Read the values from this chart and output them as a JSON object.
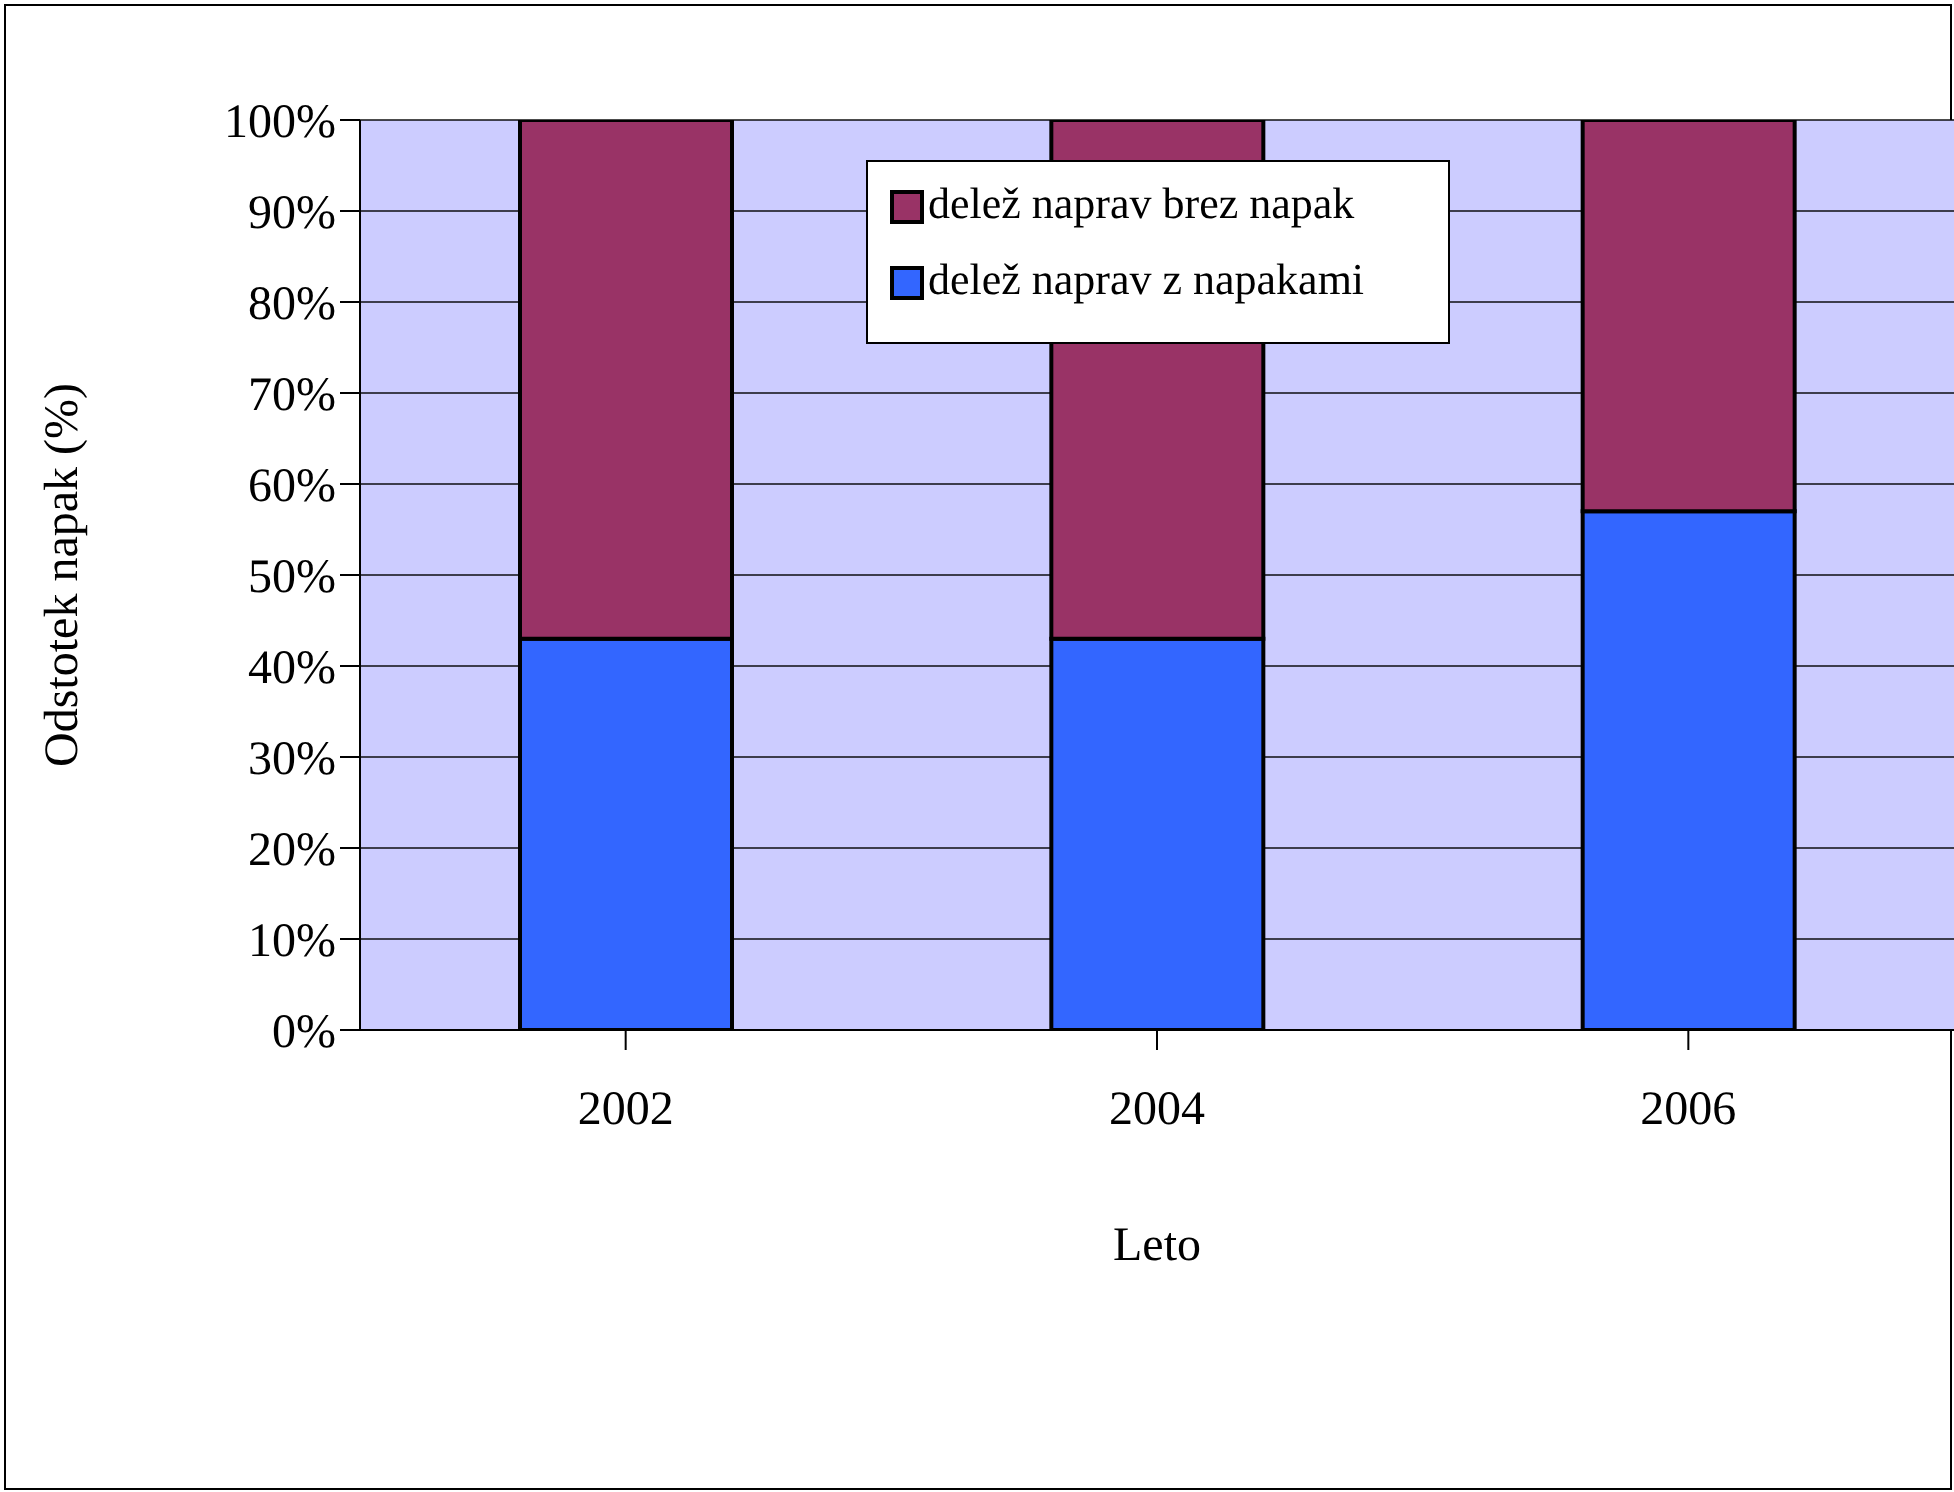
{
  "chart_data": {
    "type": "bar",
    "stacked": true,
    "xlabel": "Leto",
    "ylabel": "Odstotek napak (%)",
    "categories": [
      "2002",
      "2004",
      "2006"
    ],
    "series": [
      {
        "name": "delež naprav z napakami",
        "color": "#3366ff",
        "values": [
          43,
          43,
          57
        ]
      },
      {
        "name": "delež naprav brez napak",
        "color": "#993366",
        "values": [
          57,
          57,
          43
        ]
      }
    ],
    "ylim": [
      0,
      100
    ],
    "yticks": [
      {
        "value": 0,
        "label": "0%"
      },
      {
        "value": 10,
        "label": "10%"
      },
      {
        "value": 20,
        "label": "20%"
      },
      {
        "value": 30,
        "label": "30%"
      },
      {
        "value": 40,
        "label": "40%"
      },
      {
        "value": 50,
        "label": "50%"
      },
      {
        "value": 60,
        "label": "60%"
      },
      {
        "value": 70,
        "label": "70%"
      },
      {
        "value": 80,
        "label": "80%"
      },
      {
        "value": 90,
        "label": "90%"
      },
      {
        "value": 100,
        "label": "100%"
      }
    ],
    "grid": "y",
    "legend": "top"
  }
}
